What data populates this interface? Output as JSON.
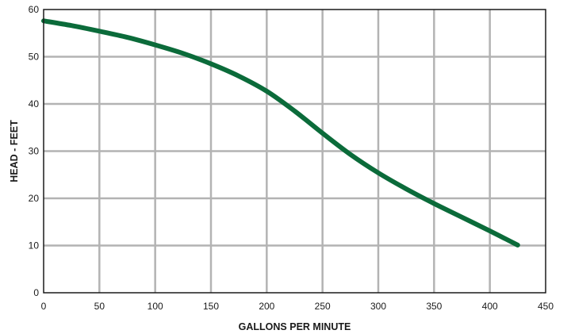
{
  "chart_data": {
    "type": "line",
    "title": "",
    "xlabel": "GALLONS PER MINUTE",
    "ylabel": "HEAD - FEET",
    "xlim": [
      0,
      450
    ],
    "ylim": [
      0,
      60
    ],
    "x_ticks": [
      0,
      50,
      100,
      150,
      200,
      250,
      300,
      350,
      400,
      450
    ],
    "y_ticks": [
      0,
      10,
      20,
      30,
      40,
      50,
      60
    ],
    "x_tick_labels": [
      "0",
      "50",
      "100",
      "150",
      "200",
      "250",
      "300",
      "350",
      "400",
      "450"
    ],
    "y_tick_labels": [
      "0",
      "10",
      "20",
      "30",
      "40",
      "50",
      "60"
    ],
    "grid": true,
    "legend": "none",
    "series": [
      {
        "color": "#0b6b3a",
        "x": [
          0,
          25,
          50,
          75,
          100,
          125,
          150,
          175,
          200,
          225,
          250,
          275,
          300,
          325,
          350,
          375,
          400,
          425
        ],
        "y": [
          57.6,
          56.6,
          55.4,
          54.1,
          52.5,
          50.7,
          48.5,
          45.9,
          42.7,
          38.5,
          33.8,
          29.3,
          25.4,
          22.0,
          18.9,
          16.0,
          13.1,
          10.1
        ]
      }
    ]
  },
  "colors": {
    "grid": "#b3b3b3",
    "frame": "#1a1a1a",
    "curve": "#0b6b3a"
  }
}
